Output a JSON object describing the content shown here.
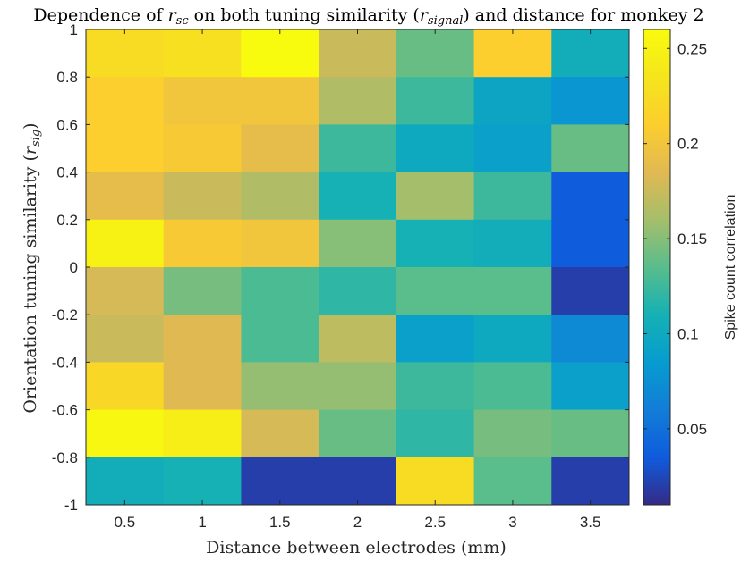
{
  "chart_data": {
    "type": "heatmap",
    "title": {
      "prefix": "Dependence of ",
      "var": "r",
      "var_sub": "sc",
      "mid": " on both tuning similarity (",
      "var2": "r",
      "var2_sub": "signal",
      "suffix": ") and distance for monkey 2"
    },
    "xlabel": "Distance between electrodes (mm)",
    "ylabel": {
      "prefix": "Orientation tuning similarity (",
      "var": "r",
      "var_sub": "sig",
      "suffix": ")"
    },
    "colorbar_label": "Spike count correlation",
    "colormap": "parula",
    "clim": [
      0.01,
      0.26
    ],
    "x_ticks": [
      "0.5",
      "1",
      "1.5",
      "2",
      "2.5",
      "3",
      "3.5"
    ],
    "y_ticks": [
      "1",
      "0.8",
      "0.6",
      "0.4",
      "0.2",
      "0",
      "-0.2",
      "-0.4",
      "-0.6",
      "-0.8",
      "-1"
    ],
    "colorbar_ticks": [
      {
        "label": "0.25",
        "value": 0.25
      },
      {
        "label": "0.2",
        "value": 0.2
      },
      {
        "label": "0.15",
        "value": 0.15
      },
      {
        "label": "0.1",
        "value": 0.1
      },
      {
        "label": "0.05",
        "value": 0.05
      }
    ],
    "x_centers": [
      0.5,
      1,
      1.5,
      2,
      2.5,
      3,
      3.5
    ],
    "y_bins": [
      [
        0.8,
        1
      ],
      [
        0.6,
        0.8
      ],
      [
        0.4,
        0.6
      ],
      [
        0.2,
        0.4
      ],
      [
        0,
        0.2
      ],
      [
        -0.2,
        0
      ],
      [
        -0.4,
        -0.2
      ],
      [
        -0.6,
        -0.4
      ],
      [
        -0.8,
        -0.6
      ],
      [
        -1,
        -0.8
      ]
    ],
    "values": [
      [
        0.225,
        0.23,
        0.26,
        0.175,
        0.14,
        0.21,
        0.105
      ],
      [
        0.21,
        0.2,
        0.2,
        0.165,
        0.125,
        0.095,
        0.08
      ],
      [
        0.21,
        0.205,
        0.19,
        0.125,
        0.1,
        0.09,
        0.14
      ],
      [
        0.19,
        0.175,
        0.165,
        0.11,
        0.16,
        0.125,
        0.035
      ],
      [
        0.25,
        0.205,
        0.2,
        0.15,
        0.11,
        0.105,
        0.035
      ],
      [
        0.18,
        0.145,
        0.13,
        0.12,
        0.135,
        0.135,
        0.02
      ],
      [
        0.175,
        0.185,
        0.13,
        0.17,
        0.09,
        0.1,
        0.07
      ],
      [
        0.22,
        0.185,
        0.155,
        0.155,
        0.125,
        0.13,
        0.09
      ],
      [
        0.255,
        0.245,
        0.18,
        0.14,
        0.12,
        0.145,
        0.14
      ],
      [
        0.105,
        0.11,
        0.02,
        0.02,
        0.225,
        0.135,
        0.02
      ]
    ]
  }
}
